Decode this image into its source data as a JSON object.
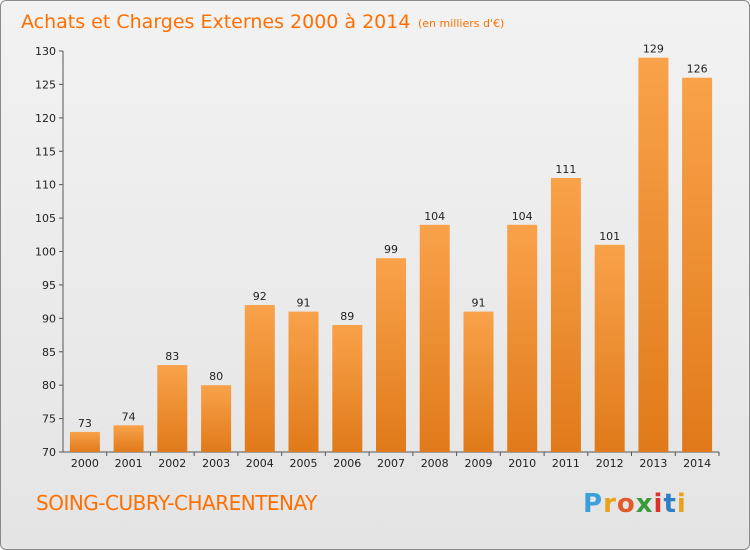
{
  "chart_data": {
    "type": "bar",
    "title": "Achats et Charges Externes 2000 à 2014",
    "subtitle": "(en milliers d'€)",
    "categories": [
      "2000",
      "2001",
      "2002",
      "2003",
      "2004",
      "2005",
      "2006",
      "2007",
      "2008",
      "2009",
      "2010",
      "2011",
      "2012",
      "2013",
      "2014"
    ],
    "values": [
      73,
      74,
      83,
      80,
      92,
      91,
      89,
      99,
      104,
      91,
      104,
      111,
      101,
      129,
      126
    ],
    "ylim": [
      70,
      130
    ],
    "yticks": [
      70,
      75,
      80,
      85,
      90,
      95,
      100,
      105,
      110,
      115,
      120,
      125,
      130
    ],
    "xlabel": "",
    "ylabel": "",
    "grid": false,
    "bar_color_top": "#f9a24a",
    "bar_color_bottom": "#e07a1a",
    "accent_color": "#ff6f00"
  },
  "footer": {
    "commune": "SOING-CUBRY-CHARENTENAY",
    "logo_letters": [
      "P",
      "r",
      "o",
      "x",
      "i",
      "t",
      "i"
    ],
    "logo_colors": [
      "#3aa0dc",
      "#e8a21b",
      "#e35b2a",
      "#3b9a3b",
      "#d9312b",
      "#2f7fc4",
      "#e8a21b"
    ]
  }
}
